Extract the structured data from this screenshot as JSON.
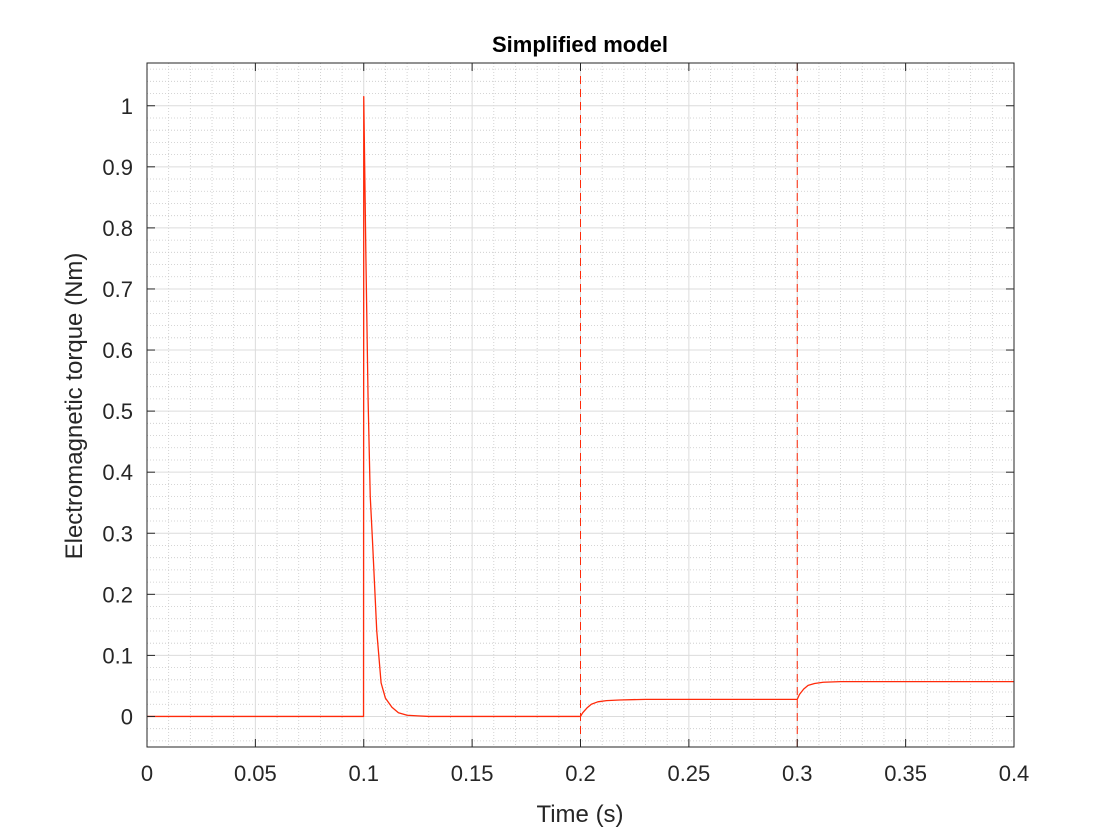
{
  "chart_data": {
    "type": "line",
    "title": "Simplified model",
    "xlabel": "Time (s)",
    "ylabel": "Electromagnetic torque (Nm)",
    "xlim": [
      0,
      0.4
    ],
    "ylim": [
      -0.05,
      1.07
    ],
    "xticks": [
      0,
      0.05,
      0.1,
      0.15,
      0.2,
      0.25,
      0.3,
      0.35,
      0.4
    ],
    "xtick_labels": [
      "0",
      "0.05",
      "0.1",
      "0.15",
      "0.2",
      "0.25",
      "0.3",
      "0.35",
      "0.4"
    ],
    "yticks": [
      0,
      0.1,
      0.2,
      0.3,
      0.4,
      0.5,
      0.6,
      0.7,
      0.8,
      0.9,
      1
    ],
    "ytick_labels": [
      "0",
      "0.1",
      "0.2",
      "0.3",
      "0.4",
      "0.5",
      "0.6",
      "0.7",
      "0.8",
      "0.9",
      "1"
    ],
    "grid": true,
    "minor_grid": true,
    "box": true,
    "series": [
      {
        "color": "#ff2a0a",
        "x": [
          0,
          0.0999,
          0.1,
          0.101,
          0.102,
          0.103,
          0.104,
          0.106,
          0.108,
          0.11,
          0.113,
          0.116,
          0.12,
          0.125,
          0.13,
          0.2,
          0.201,
          0.203,
          0.205,
          0.208,
          0.212,
          0.218,
          0.23,
          0.3,
          0.301,
          0.303,
          0.305,
          0.308,
          0.312,
          0.32,
          0.4
        ],
        "y": [
          0,
          0,
          1.015,
          0.75,
          0.52,
          0.36,
          0.29,
          0.14,
          0.055,
          0.03,
          0.015,
          0.006,
          0.002,
          0.001,
          0,
          0,
          0.006,
          0.014,
          0.02,
          0.024,
          0.026,
          0.027,
          0.028,
          0.028,
          0.036,
          0.045,
          0.051,
          0.054,
          0.056,
          0.057,
          0.057
        ]
      }
    ],
    "vlines": [
      {
        "x": 0.2,
        "color": "#ff2a0a",
        "style": "dashed"
      },
      {
        "x": 0.3,
        "color": "#ff2a0a",
        "style": "dashed"
      }
    ]
  }
}
